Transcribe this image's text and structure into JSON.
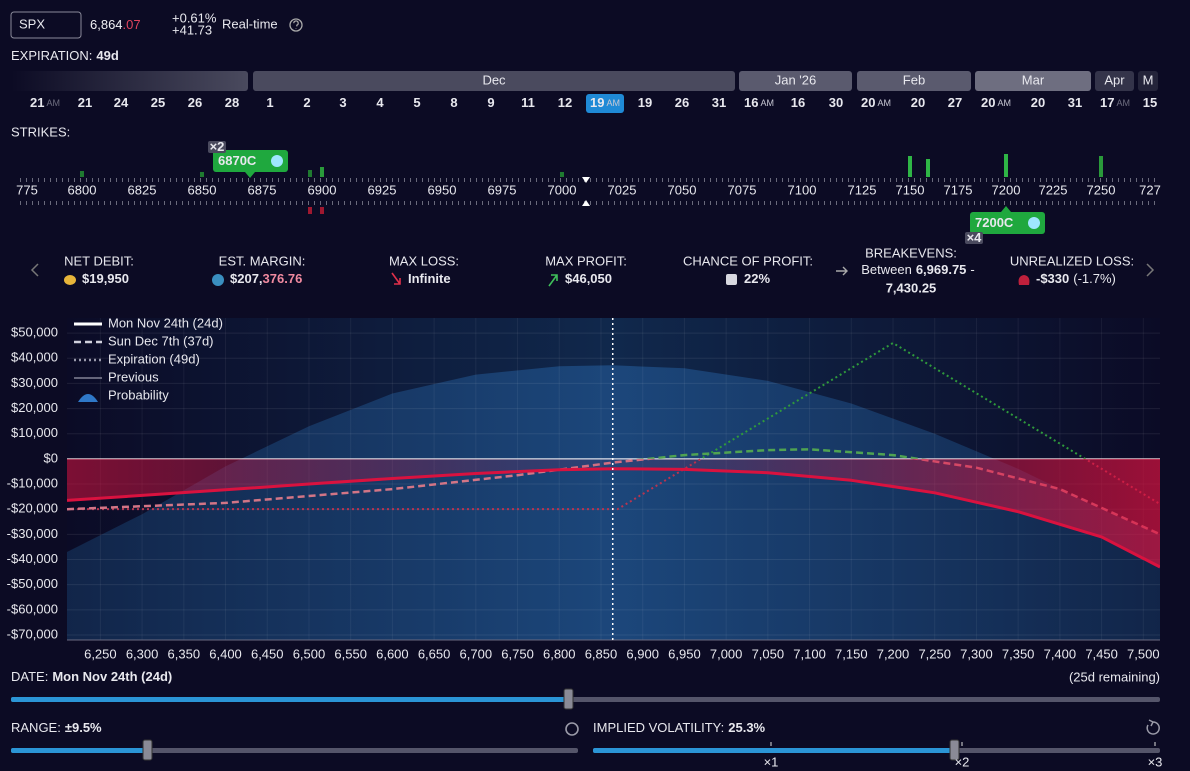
{
  "header": {
    "symbol": "SPX",
    "price": "6,864",
    "price_decimals": ".07",
    "change_pct": "+0.61%",
    "change_pts": "+41.73",
    "mode": "Real-time"
  },
  "expiration": {
    "label": "EXPIRATION:",
    "value": "49d",
    "months": [
      {
        "name": "Dec"
      },
      {
        "name": "Jan '26"
      },
      {
        "name": "Feb"
      },
      {
        "name": "Mar"
      },
      {
        "name": "Apr",
        "faded": true
      },
      {
        "name": "M",
        "faded": true
      }
    ],
    "dates": [
      {
        "day": "21",
        "tag": "AM",
        "faded": true
      },
      {
        "day": "21"
      },
      {
        "day": "24"
      },
      {
        "day": "25"
      },
      {
        "day": "26"
      },
      {
        "day": "28"
      },
      {
        "day": "1"
      },
      {
        "day": "2"
      },
      {
        "day": "3"
      },
      {
        "day": "4"
      },
      {
        "day": "5"
      },
      {
        "day": "8"
      },
      {
        "day": "9"
      },
      {
        "day": "11"
      },
      {
        "day": "12"
      },
      {
        "day": "19",
        "tag": "AM",
        "selected": true
      },
      {
        "day": "19"
      },
      {
        "day": "26"
      },
      {
        "day": "31"
      },
      {
        "day": "16",
        "tag": "AM"
      },
      {
        "day": "16"
      },
      {
        "day": "30"
      },
      {
        "day": "20",
        "tag": "AM"
      },
      {
        "day": "20"
      },
      {
        "day": "27"
      },
      {
        "day": "20",
        "tag": "AM"
      },
      {
        "day": "20"
      },
      {
        "day": "31"
      },
      {
        "day": "17",
        "tag": "AM",
        "faded": true
      },
      {
        "day": "15",
        "faded": true
      }
    ]
  },
  "strikes": {
    "label": "STRIKES:",
    "labels": [
      "775",
      "6800",
      "6825",
      "6850",
      "6875",
      "6900",
      "6925",
      "6950",
      "6975",
      "7000",
      "7025",
      "7050",
      "7075",
      "7100",
      "7125",
      "7150",
      "7175",
      "7200",
      "7225",
      "7250",
      "727"
    ],
    "legs": [
      {
        "label": "6870C",
        "qty": "×2"
      },
      {
        "label": "7200C",
        "qty": "×4"
      }
    ]
  },
  "stats": [
    {
      "label": "NET DEBIT:",
      "value": "$19,950"
    },
    {
      "label": "EST. MARGIN:",
      "value": "$207,",
      "value_tail": "376.76"
    },
    {
      "label": "MAX LOSS:",
      "value": "Infinite"
    },
    {
      "label": "MAX PROFIT:",
      "value": "$46,050"
    },
    {
      "label": "CHANCE OF PROFIT:",
      "value": "22%"
    },
    {
      "label": "BREAKEVENS:",
      "prefix": "Between",
      "low": "6,969.75",
      "sep": "-",
      "high": "7,430.25"
    },
    {
      "label": "UNREALIZED LOSS:",
      "value": "-$330",
      "value_tail": "(-1.7%)"
    }
  ],
  "chart_data": {
    "type": "line",
    "xlim": [
      6210,
      7520
    ],
    "ylim": [
      -72000,
      56000
    ],
    "spot": 6864.07,
    "grid": true,
    "xticks": [
      {
        "value": 6250,
        "label": "6,250"
      },
      {
        "value": 6300,
        "label": "6,300"
      },
      {
        "value": 6350,
        "label": "6,350"
      },
      {
        "value": 6400,
        "label": "6,400"
      },
      {
        "value": 6450,
        "label": "6,450"
      },
      {
        "value": 6500,
        "label": "6,500"
      },
      {
        "value": 6550,
        "label": "6,550"
      },
      {
        "value": 6600,
        "label": "6,600"
      },
      {
        "value": 6650,
        "label": "6,650"
      },
      {
        "value": 6700,
        "label": "6,700"
      },
      {
        "value": 6750,
        "label": "6,750"
      },
      {
        "value": 6800,
        "label": "6,800"
      },
      {
        "value": 6850,
        "label": "6,850"
      },
      {
        "value": 6900,
        "label": "6,900"
      },
      {
        "value": 6950,
        "label": "6,950"
      },
      {
        "value": 7000,
        "label": "7,000"
      },
      {
        "value": 7050,
        "label": "7,050"
      },
      {
        "value": 7100,
        "label": "7,100"
      },
      {
        "value": 7150,
        "label": "7,150"
      },
      {
        "value": 7200,
        "label": "7,200"
      },
      {
        "value": 7250,
        "label": "7,250"
      },
      {
        "value": 7300,
        "label": "7,300"
      },
      {
        "value": 7350,
        "label": "7,350"
      },
      {
        "value": 7400,
        "label": "7,400"
      },
      {
        "value": 7450,
        "label": "7,450"
      },
      {
        "value": 7500,
        "label": "7,500"
      }
    ],
    "yticks": [
      {
        "value": 50000,
        "label": "$50,000"
      },
      {
        "value": 40000,
        "label": "$40,000"
      },
      {
        "value": 30000,
        "label": "$30,000"
      },
      {
        "value": 20000,
        "label": "$20,000"
      },
      {
        "value": 10000,
        "label": "$10,000"
      },
      {
        "value": 0,
        "label": "$0"
      },
      {
        "value": -10000,
        "label": "-$10,000"
      },
      {
        "value": -20000,
        "label": "-$20,000"
      },
      {
        "value": -30000,
        "label": "-$30,000"
      },
      {
        "value": -40000,
        "label": "-$40,000"
      },
      {
        "value": -50000,
        "label": "-$50,000"
      },
      {
        "value": -60000,
        "label": "-$60,000"
      },
      {
        "value": -70000,
        "label": "-$70,000"
      }
    ],
    "series": [
      {
        "name": "Mon Nov 24th (24d)",
        "style": "solid",
        "color": "#d9123f",
        "fill_loss": true,
        "x": [
          6210,
          6300,
          6400,
          6500,
          6600,
          6700,
          6800,
          6864,
          6950,
          7050,
          7150,
          7250,
          7350,
          7450,
          7520
        ],
        "values": [
          -16500,
          -14500,
          -12300,
          -10000,
          -7800,
          -5800,
          -4300,
          -3900,
          -4200,
          -5500,
          -8500,
          -13500,
          -21000,
          -31000,
          -43000
        ]
      },
      {
        "name": "Sun Dec 7th (37d)",
        "style": "dashed",
        "color": "#d27586",
        "color_above": "#4fa352",
        "x": [
          6210,
          6400,
          6600,
          6750,
          6864,
          6950,
          7050,
          7100,
          7200,
          7300,
          7400,
          7520
        ],
        "values": [
          -20000,
          -17500,
          -12000,
          -6500,
          -1500,
          1500,
          3500,
          3800,
          1500,
          -3500,
          -12000,
          -30000
        ]
      },
      {
        "name": "Expiration (49d)",
        "style": "dotted",
        "color": "#b83450",
        "color_above": "#2f9a3c",
        "x": [
          6210,
          6870,
          7200,
          7520
        ],
        "values": [
          -19950,
          -19950,
          46050,
          -17950
        ]
      },
      {
        "name": "Previous",
        "style": "thin",
        "color": "#8a8aa0",
        "x": [],
        "values": []
      },
      {
        "name": "Probability",
        "style": "area",
        "color": "#1d4a80",
        "x": [
          6210,
          6300,
          6400,
          6500,
          6600,
          6700,
          6800,
          6864,
          6950,
          7050,
          7150,
          7250,
          7350,
          7450,
          7520
        ],
        "values": [
          -37000,
          -22000,
          -3000,
          13000,
          26000,
          33500,
          36800,
          37200,
          36000,
          31000,
          22000,
          10000,
          -4000,
          -20000,
          -30000
        ]
      }
    ]
  },
  "controls": {
    "date_label": "DATE:",
    "date_value": "Mon Nov 24th (24d)",
    "remaining": "(25d remaining)",
    "range_label": "RANGE:",
    "range_value": "±9.5%",
    "iv_label": "IMPLIED VOLATILITY:",
    "iv_value": "25.3%",
    "iv_marks": [
      "×1",
      "×2",
      "×3"
    ]
  }
}
